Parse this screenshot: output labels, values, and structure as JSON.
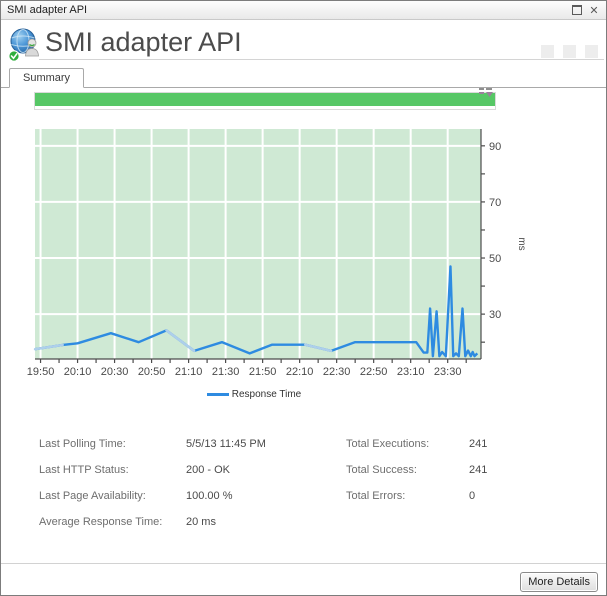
{
  "window": {
    "title": "SMI adapter API",
    "icons": {
      "close": "✕"
    }
  },
  "header": {
    "title": "SMI adapter API"
  },
  "tabs": [
    {
      "label": "Summary",
      "active": true
    }
  ],
  "availability_bar": {
    "value_percent": 100,
    "color": "#57c766"
  },
  "chart_data": {
    "type": "line",
    "title": "",
    "xlabel": "",
    "ylabel": "ms",
    "xlim_minutes": [
      -3,
      238
    ],
    "ylim": [
      14,
      96
    ],
    "x_tick_step": 10,
    "x_label_step": 20,
    "x_tick_labels": {
      "0": "19:50",
      "20": "20:10",
      "40": "20:30",
      "60": "20:50",
      "80": "21:10",
      "100": "21:30",
      "120": "21:50",
      "140": "22:10",
      "160": "22:30",
      "180": "22:50",
      "200": "23:10",
      "220": "23:30"
    },
    "y_tick_step": 10,
    "y_tick_start": 20,
    "y_label_values": [
      30,
      50,
      70,
      90
    ],
    "grid": true,
    "legend_position": "bottom",
    "plot_bg": "#cfe9d4",
    "grid_color": "#ffffff",
    "axis_color": "#4c4c4c",
    "tick_label_color": "#4a4a4a",
    "series": [
      {
        "name": "Response Time",
        "color": "#2e8be1",
        "light_color": "#aecfeb",
        "points": [
          [
            -3,
            17.5
          ],
          [
            12,
            19
          ],
          [
            20,
            19.6
          ],
          [
            38,
            23.2
          ],
          [
            53,
            20
          ],
          [
            68,
            24.2
          ],
          [
            83,
            16.9
          ],
          [
            98,
            20
          ],
          [
            113,
            16
          ],
          [
            125,
            19.1
          ],
          [
            143,
            19.1
          ],
          [
            157,
            16.9
          ],
          [
            170,
            20
          ],
          [
            203,
            20
          ],
          [
            207,
            16.3
          ],
          [
            209,
            16.3
          ],
          [
            210.5,
            32
          ],
          [
            212,
            15
          ],
          [
            214,
            31
          ],
          [
            215.5,
            15
          ],
          [
            217,
            16.5
          ],
          [
            219,
            15
          ],
          [
            221.5,
            47
          ],
          [
            223,
            15
          ],
          [
            224.5,
            16
          ],
          [
            226,
            15
          ],
          [
            228,
            32
          ],
          [
            229.5,
            15
          ],
          [
            231,
            17
          ],
          [
            232.5,
            15
          ],
          [
            233.5,
            16.5
          ],
          [
            234.5,
            15
          ],
          [
            236,
            16
          ]
        ],
        "light_segments": [
          [
            0,
            1
          ],
          [
            5,
            6
          ],
          [
            10,
            11
          ]
        ]
      }
    ]
  },
  "legend": {
    "label": "Response Time"
  },
  "stats": {
    "left": [
      {
        "label": "Last Polling Time:",
        "value": "5/5/13 11:45 PM"
      },
      {
        "label": "Last HTTP Status:",
        "value": "200 - OK"
      },
      {
        "label": "Last Page Availability:",
        "value": "100.00 %"
      },
      {
        "label": "Average Response Time:",
        "value": "20 ms"
      }
    ],
    "right": [
      {
        "label": "Total Executions:",
        "value": "241"
      },
      {
        "label": "Total Success:",
        "value": "241"
      },
      {
        "label": "Total Errors:",
        "value": "0"
      }
    ]
  },
  "footer": {
    "more_details_label": "More Details"
  },
  "colors": {
    "accent_green": "#57c766",
    "chart_bg": "#cfe9d4",
    "line_blue": "#2e8be1",
    "line_light": "#aecfeb",
    "window_border": "#7c7c7c"
  }
}
